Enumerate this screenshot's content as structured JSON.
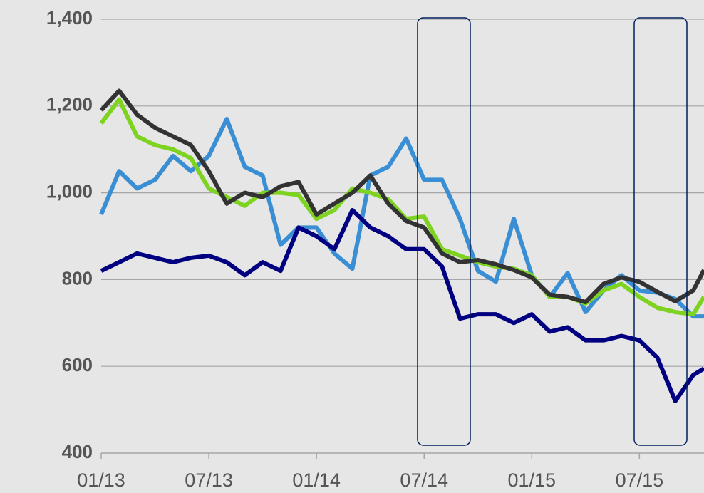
{
  "chart_data": {
    "type": "line",
    "x": [
      0,
      1,
      2,
      3,
      4,
      5,
      6,
      7,
      8,
      9,
      10,
      11,
      12,
      13,
      14,
      15,
      16,
      17,
      18,
      19,
      20,
      21,
      22,
      23,
      24,
      25,
      26,
      27,
      28,
      29,
      30,
      31,
      32,
      33,
      33.6
    ],
    "series": [
      {
        "color": "#3a8fd4",
        "values": [
          950,
          1050,
          1010,
          1030,
          1085,
          1050,
          1085,
          1170,
          1060,
          1040,
          880,
          920,
          920,
          860,
          825,
          1040,
          1060,
          1125,
          1030,
          1030,
          940,
          820,
          795,
          940,
          810,
          760,
          815,
          725,
          775,
          810,
          775,
          770,
          755,
          715,
          715
        ]
      },
      {
        "color": "#7ed321",
        "values": [
          1160,
          1215,
          1130,
          1110,
          1100,
          1080,
          1010,
          990,
          970,
          1000,
          1000,
          995,
          940,
          960,
          1010,
          1000,
          985,
          940,
          945,
          870,
          855,
          840,
          830,
          825,
          810,
          760,
          760,
          745,
          775,
          790,
          760,
          735,
          725,
          720,
          760
        ]
      },
      {
        "color": "#333333",
        "values": [
          1190,
          1235,
          1180,
          1150,
          1130,
          1110,
          1050,
          975,
          1000,
          990,
          1015,
          1025,
          950,
          975,
          1000,
          1040,
          975,
          935,
          920,
          860,
          840,
          845,
          835,
          822,
          805,
          765,
          760,
          748,
          790,
          805,
          795,
          772,
          750,
          775,
          822
        ]
      },
      {
        "color": "#000080",
        "values": [
          820,
          840,
          860,
          850,
          840,
          850,
          855,
          840,
          810,
          840,
          820,
          920,
          900,
          870,
          960,
          920,
          900,
          870,
          870,
          830,
          710,
          720,
          720,
          700,
          720,
          680,
          690,
          660,
          660,
          670,
          660,
          620,
          520,
          580,
          595
        ]
      }
    ],
    "xlim": [
      0,
      33.6
    ],
    "xticks": [
      {
        "value": 0,
        "label": "01/13"
      },
      {
        "value": 6,
        "label": "07/13"
      },
      {
        "value": 12,
        "label": "01/14"
      },
      {
        "value": 18,
        "label": "07/14"
      },
      {
        "value": 24,
        "label": "01/15"
      },
      {
        "value": 30,
        "label": "07/15"
      }
    ],
    "ylim": [
      400,
      1400
    ],
    "yticks": [
      400,
      600,
      800,
      {
        "value": 1000,
        "label": "1,000"
      },
      {
        "value": 1200,
        "label": "1,200"
      },
      {
        "value": 1400,
        "label": "1,400"
      }
    ],
    "grid": true
  }
}
